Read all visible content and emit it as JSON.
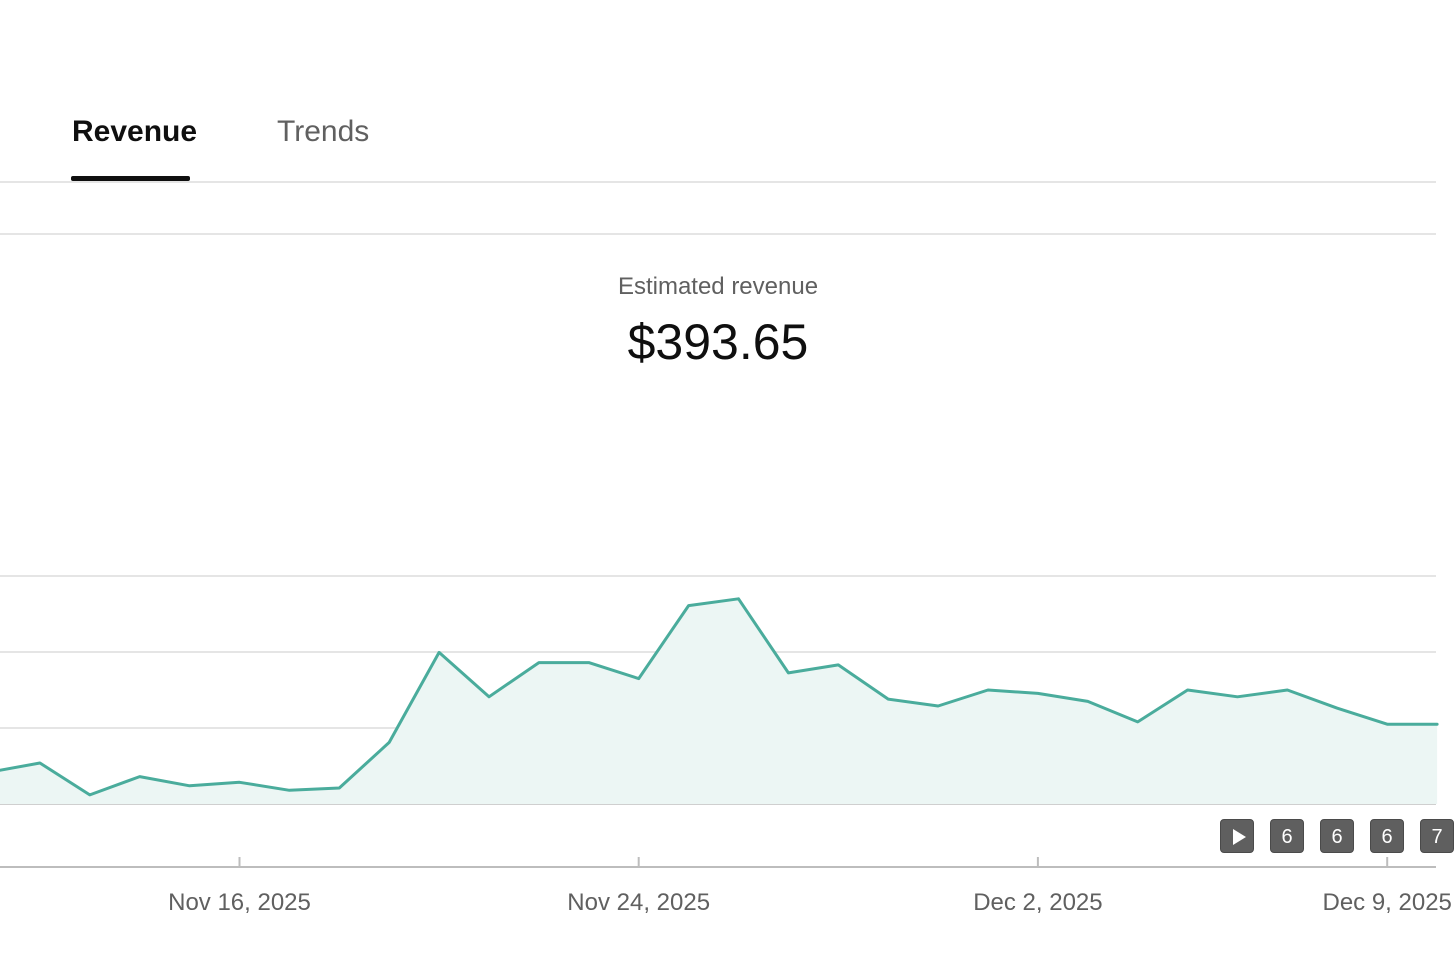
{
  "tabs": {
    "revenue_label": "Revenue",
    "trends_label": "Trends",
    "active": "Revenue"
  },
  "metric": {
    "label": "Estimated revenue",
    "value": "$393.65"
  },
  "markers": [
    {
      "icon": "play-icon",
      "label": ""
    },
    {
      "icon": "",
      "label": "6"
    },
    {
      "icon": "",
      "label": "6"
    },
    {
      "icon": "",
      "label": "6"
    },
    {
      "icon": "",
      "label": "7"
    }
  ],
  "colors": {
    "line": "#4aac9c",
    "area": "#ecf6f4",
    "grid": "#e5e5e5",
    "axis": "#bdbdbd"
  },
  "chart_data": {
    "type": "area",
    "x_tick_labels": [
      "Nov 16, 2025",
      "Nov 24, 2025",
      "Dec 2, 2025",
      "Dec 9, 2025"
    ],
    "x": [
      "2025-11-11",
      "2025-11-12",
      "2025-11-13",
      "2025-11-14",
      "2025-11-15",
      "2025-11-16",
      "2025-11-17",
      "2025-11-18",
      "2025-11-19",
      "2025-11-20",
      "2025-11-21",
      "2025-11-22",
      "2025-11-23",
      "2025-11-24",
      "2025-11-25",
      "2025-11-26",
      "2025-11-27",
      "2025-11-28",
      "2025-11-29",
      "2025-11-30",
      "2025-12-01",
      "2025-12-02",
      "2025-12-03",
      "2025-12-04",
      "2025-12-05",
      "2025-12-06",
      "2025-12-07",
      "2025-12-08",
      "2025-12-09",
      "2025-12-10"
    ],
    "values": [
      2.8,
      3.6,
      0.8,
      2.4,
      1.6,
      1.9,
      1.2,
      1.4,
      5.4,
      13.3,
      9.4,
      12.4,
      12.4,
      11.0,
      17.4,
      18.0,
      11.5,
      12.2,
      9.2,
      8.6,
      10.0,
      9.7,
      9.0,
      7.2,
      10.0,
      9.4,
      10.0,
      8.4,
      7.0,
      7.0
    ],
    "ylim": [
      0,
      20
    ],
    "y_gridlines": [
      0,
      6.67,
      13.33,
      20
    ],
    "grid": true,
    "xlabel": "",
    "ylabel": ""
  }
}
